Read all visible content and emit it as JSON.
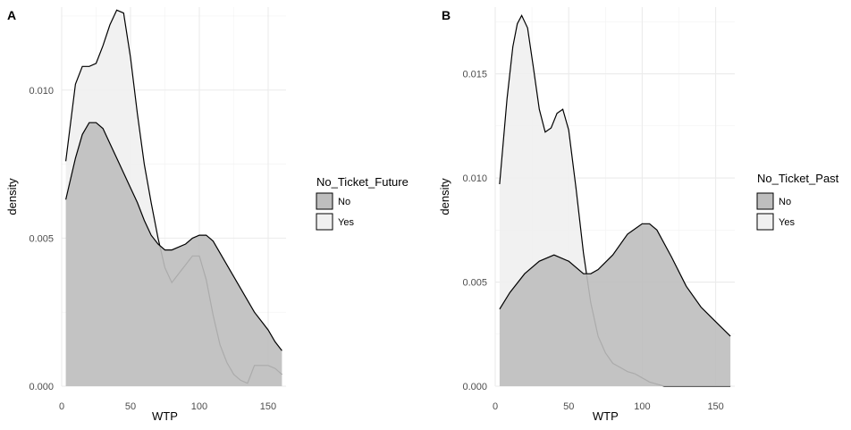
{
  "chart_data": [
    {
      "type": "area",
      "panel_label": "A",
      "xlabel": "WTP",
      "ylabel": "density",
      "xlim": [
        0,
        163
      ],
      "ylim": [
        0,
        0.0128
      ],
      "xticks": [
        0,
        50,
        100,
        150
      ],
      "yticks": [
        0.0,
        0.005,
        0.01
      ],
      "ytick_labels": [
        "0.000",
        "0.005",
        "0.010"
      ],
      "grid": true,
      "legend_position": "right",
      "legend": {
        "title": "No_Ticket_Future",
        "entries": [
          {
            "label": "No",
            "color": "#bebebe"
          },
          {
            "label": "Yes",
            "color": "#f0f0f0"
          }
        ]
      },
      "series": [
        {
          "name": "Yes",
          "color": "#f0f0f0",
          "x": [
            3,
            10,
            15,
            20,
            25,
            30,
            35,
            40,
            45,
            50,
            55,
            60,
            65,
            70,
            75,
            80,
            85,
            90,
            95,
            100,
            105,
            110,
            115,
            120,
            125,
            130,
            135,
            140,
            145,
            150,
            155,
            160
          ],
          "y": [
            0.0076,
            0.0102,
            0.0108,
            0.0108,
            0.0109,
            0.0115,
            0.0122,
            0.0127,
            0.0126,
            0.0111,
            0.0092,
            0.0075,
            0.0062,
            0.005,
            0.004,
            0.0035,
            0.0038,
            0.0041,
            0.0044,
            0.0044,
            0.0036,
            0.0024,
            0.0014,
            0.0008,
            0.0004,
            0.0002,
            0.0001,
            0.0007,
            0.0007,
            0.0007,
            0.0006,
            0.0004
          ]
        },
        {
          "name": "No",
          "color": "#bebebe",
          "x": [
            3,
            10,
            15,
            20,
            25,
            30,
            35,
            40,
            45,
            50,
            55,
            60,
            65,
            70,
            75,
            80,
            85,
            90,
            95,
            100,
            105,
            110,
            115,
            120,
            125,
            130,
            135,
            140,
            145,
            150,
            155,
            160
          ],
          "y": [
            0.0063,
            0.0077,
            0.0085,
            0.0089,
            0.0089,
            0.0087,
            0.0082,
            0.0077,
            0.0072,
            0.0067,
            0.0062,
            0.0056,
            0.0051,
            0.0048,
            0.0046,
            0.0046,
            0.0047,
            0.0048,
            0.005,
            0.0051,
            0.0051,
            0.0049,
            0.0045,
            0.0041,
            0.0037,
            0.0033,
            0.0029,
            0.0025,
            0.0022,
            0.0019,
            0.0015,
            0.0012
          ]
        }
      ]
    },
    {
      "type": "area",
      "panel_label": "B",
      "xlabel": "WTP",
      "ylabel": "density",
      "xlim": [
        0,
        163
      ],
      "ylim": [
        0,
        0.0182
      ],
      "xticks": [
        0,
        50,
        100,
        150
      ],
      "yticks": [
        0.0,
        0.005,
        0.01,
        0.015
      ],
      "ytick_labels": [
        "0.000",
        "0.005",
        "0.010",
        "0.015"
      ],
      "grid": true,
      "legend_position": "right",
      "legend": {
        "title": "No_Ticket_Past",
        "entries": [
          {
            "label": "No",
            "color": "#bebebe"
          },
          {
            "label": "Yes",
            "color": "#f0f0f0"
          }
        ]
      },
      "series": [
        {
          "name": "Yes",
          "color": "#f0f0f0",
          "x": [
            3,
            8,
            12,
            15,
            18,
            22,
            26,
            30,
            34,
            38,
            42,
            46,
            50,
            55,
            60,
            65,
            70,
            75,
            80,
            85,
            90,
            95,
            100,
            105,
            110,
            115,
            120,
            130,
            140,
            150,
            160
          ],
          "y": [
            0.0097,
            0.0138,
            0.0163,
            0.0174,
            0.0178,
            0.0172,
            0.0153,
            0.0133,
            0.0122,
            0.0124,
            0.0131,
            0.0133,
            0.0123,
            0.0095,
            0.0064,
            0.004,
            0.0024,
            0.0016,
            0.0011,
            0.0009,
            0.0007,
            0.0006,
            0.0004,
            0.0002,
            0.0001,
            0.0,
            0.0,
            0.0,
            0.0,
            0.0,
            0.0
          ]
        },
        {
          "name": "No",
          "color": "#bebebe",
          "x": [
            3,
            10,
            20,
            30,
            40,
            50,
            60,
            65,
            70,
            80,
            90,
            100,
            105,
            110,
            120,
            130,
            140,
            150,
            160
          ],
          "y": [
            0.0037,
            0.0045,
            0.0054,
            0.006,
            0.0063,
            0.006,
            0.0054,
            0.0054,
            0.0056,
            0.0063,
            0.0073,
            0.0078,
            0.0078,
            0.0075,
            0.0062,
            0.0048,
            0.0038,
            0.0031,
            0.0024
          ]
        }
      ]
    }
  ]
}
